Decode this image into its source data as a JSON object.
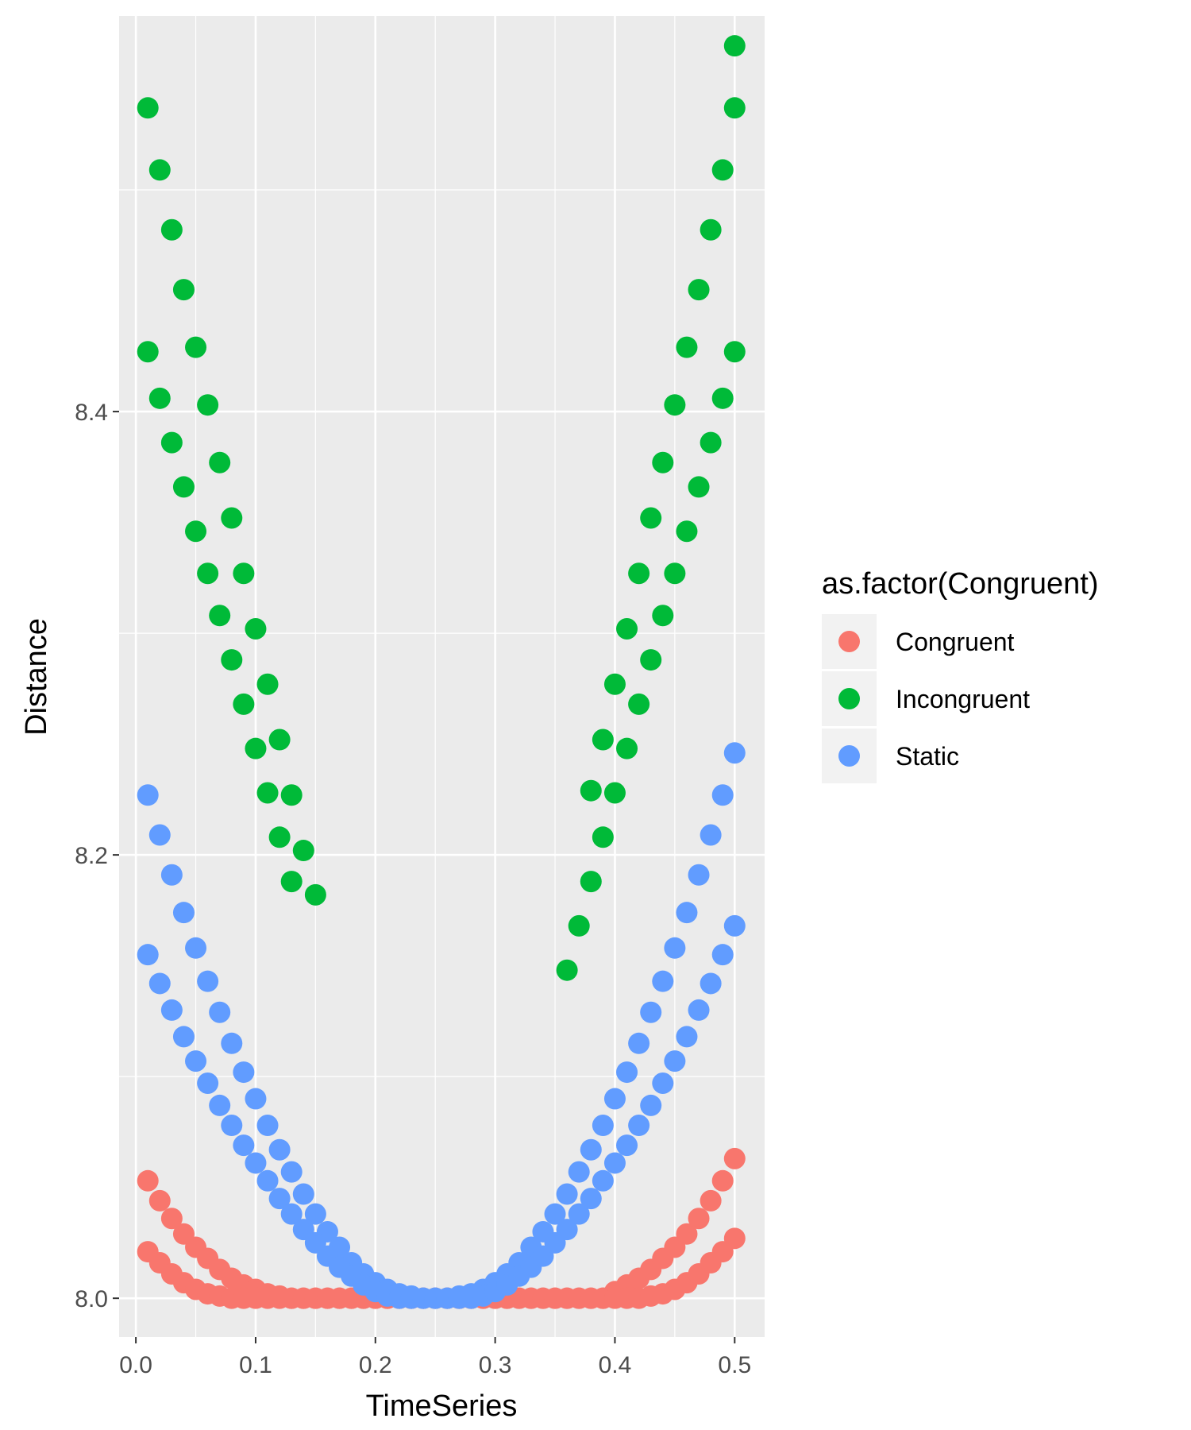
{
  "chart_data": {
    "type": "scatter",
    "xlabel": "TimeSeries",
    "ylabel": "Distance",
    "xlim": [
      -0.014,
      0.525
    ],
    "ylim": [
      7.9825,
      8.5785
    ],
    "x_ticks": [
      0.0,
      0.1,
      0.2,
      0.3,
      0.4,
      0.5
    ],
    "x_tick_labels": [
      "0.0",
      "0.1",
      "0.2",
      "0.3",
      "0.4",
      "0.5"
    ],
    "y_ticks": [
      8.0,
      8.2,
      8.4
    ],
    "y_tick_labels": [
      "8.0",
      "8.2",
      "8.4"
    ],
    "grid": true,
    "panel_background": "#ebebeb",
    "legend_title": "as.factor(Congruent)",
    "legend_position": "right",
    "series": [
      {
        "name": "Congruent",
        "color": "#F8766D",
        "points": [
          [
            0.01,
            8.053
          ],
          [
            0.02,
            8.044
          ],
          [
            0.03,
            8.036
          ],
          [
            0.04,
            8.029
          ],
          [
            0.05,
            8.023
          ],
          [
            0.06,
            8.018
          ],
          [
            0.07,
            8.013
          ],
          [
            0.08,
            8.009
          ],
          [
            0.09,
            8.006
          ],
          [
            0.1,
            8.004
          ],
          [
            0.11,
            8.002
          ],
          [
            0.12,
            8.001
          ],
          [
            0.13,
            8.0
          ],
          [
            0.14,
            8.0
          ],
          [
            0.15,
            8.0
          ],
          [
            0.16,
            8.0
          ],
          [
            0.17,
            8.0
          ],
          [
            0.18,
            8.0
          ],
          [
            0.19,
            8.0
          ],
          [
            0.2,
            8.0
          ],
          [
            0.21,
            8.0
          ],
          [
            0.22,
            8.0
          ],
          [
            0.23,
            8.0
          ],
          [
            0.24,
            8.0
          ],
          [
            0.25,
            8.0
          ],
          [
            0.26,
            8.0
          ],
          [
            0.27,
            8.0
          ],
          [
            0.28,
            8.0
          ],
          [
            0.29,
            8.0
          ],
          [
            0.3,
            8.0
          ],
          [
            0.31,
            8.0
          ],
          [
            0.32,
            8.0
          ],
          [
            0.33,
            8.0
          ],
          [
            0.34,
            8.0
          ],
          [
            0.35,
            8.0
          ],
          [
            0.36,
            8.0
          ],
          [
            0.37,
            8.0
          ],
          [
            0.38,
            8.0
          ],
          [
            0.39,
            8.0
          ],
          [
            0.4,
            8.003
          ],
          [
            0.41,
            8.006
          ],
          [
            0.42,
            8.009
          ],
          [
            0.43,
            8.013
          ],
          [
            0.44,
            8.018
          ],
          [
            0.45,
            8.023
          ],
          [
            0.46,
            8.029
          ],
          [
            0.47,
            8.036
          ],
          [
            0.48,
            8.044
          ],
          [
            0.49,
            8.053
          ],
          [
            0.5,
            8.063
          ],
          [
            0.01,
            8.021
          ],
          [
            0.02,
            8.016
          ],
          [
            0.03,
            8.011
          ],
          [
            0.04,
            8.007
          ],
          [
            0.05,
            8.004
          ],
          [
            0.06,
            8.002
          ],
          [
            0.07,
            8.001
          ],
          [
            0.08,
            8.0
          ],
          [
            0.09,
            8.0
          ],
          [
            0.1,
            8.0
          ],
          [
            0.11,
            8.0
          ],
          [
            0.12,
            8.0
          ],
          [
            0.13,
            8.0
          ],
          [
            0.14,
            8.0
          ],
          [
            0.15,
            8.0
          ],
          [
            0.16,
            8.0
          ],
          [
            0.17,
            8.0
          ],
          [
            0.18,
            8.0
          ],
          [
            0.19,
            8.0
          ],
          [
            0.2,
            8.0
          ],
          [
            0.21,
            8.0
          ],
          [
            0.22,
            8.0
          ],
          [
            0.23,
            8.0
          ],
          [
            0.24,
            8.0
          ],
          [
            0.25,
            8.0
          ],
          [
            0.26,
            8.0
          ],
          [
            0.27,
            8.0
          ],
          [
            0.28,
            8.0
          ],
          [
            0.29,
            8.0
          ],
          [
            0.3,
            8.0
          ],
          [
            0.31,
            8.0
          ],
          [
            0.32,
            8.0
          ],
          [
            0.33,
            8.0
          ],
          [
            0.34,
            8.0
          ],
          [
            0.35,
            8.0
          ],
          [
            0.36,
            8.0
          ],
          [
            0.37,
            8.0
          ],
          [
            0.38,
            8.0
          ],
          [
            0.39,
            8.0
          ],
          [
            0.4,
            8.0
          ],
          [
            0.41,
            8.0
          ],
          [
            0.42,
            8.0
          ],
          [
            0.43,
            8.001
          ],
          [
            0.44,
            8.002
          ],
          [
            0.45,
            8.004
          ],
          [
            0.46,
            8.007
          ],
          [
            0.47,
            8.011
          ],
          [
            0.48,
            8.016
          ],
          [
            0.49,
            8.021
          ],
          [
            0.5,
            8.027
          ]
        ]
      },
      {
        "name": "Incongruent",
        "color": "#00BA38",
        "points": [
          [
            0.01,
            8.537
          ],
          [
            0.02,
            8.509
          ],
          [
            0.03,
            8.482
          ],
          [
            0.04,
            8.455
          ],
          [
            0.05,
            8.429
          ],
          [
            0.06,
            8.403
          ],
          [
            0.07,
            8.377
          ],
          [
            0.08,
            8.352
          ],
          [
            0.09,
            8.327
          ],
          [
            0.1,
            8.302
          ],
          [
            0.11,
            8.277
          ],
          [
            0.12,
            8.252
          ],
          [
            0.13,
            8.227
          ],
          [
            0.14,
            8.202
          ],
          [
            0.15,
            8.182
          ],
          [
            0.01,
            8.427
          ],
          [
            0.02,
            8.406
          ],
          [
            0.03,
            8.386
          ],
          [
            0.04,
            8.366
          ],
          [
            0.05,
            8.346
          ],
          [
            0.06,
            8.327
          ],
          [
            0.07,
            8.308
          ],
          [
            0.08,
            8.288
          ],
          [
            0.09,
            8.268
          ],
          [
            0.1,
            8.248
          ],
          [
            0.11,
            8.228
          ],
          [
            0.12,
            8.208
          ],
          [
            0.13,
            8.188
          ],
          [
            0.36,
            8.148
          ],
          [
            0.37,
            8.168
          ],
          [
            0.38,
            8.188
          ],
          [
            0.39,
            8.208
          ],
          [
            0.4,
            8.228
          ],
          [
            0.41,
            8.248
          ],
          [
            0.42,
            8.268
          ],
          [
            0.43,
            8.288
          ],
          [
            0.44,
            8.308
          ],
          [
            0.45,
            8.327
          ],
          [
            0.46,
            8.346
          ],
          [
            0.47,
            8.366
          ],
          [
            0.48,
            8.386
          ],
          [
            0.49,
            8.406
          ],
          [
            0.5,
            8.427
          ],
          [
            0.38,
            8.229
          ],
          [
            0.39,
            8.252
          ],
          [
            0.4,
            8.277
          ],
          [
            0.41,
            8.302
          ],
          [
            0.42,
            8.327
          ],
          [
            0.43,
            8.352
          ],
          [
            0.44,
            8.377
          ],
          [
            0.45,
            8.403
          ],
          [
            0.46,
            8.429
          ],
          [
            0.47,
            8.455
          ],
          [
            0.48,
            8.482
          ],
          [
            0.49,
            8.509
          ],
          [
            0.5,
            8.537
          ],
          [
            0.5,
            8.565
          ]
        ]
      },
      {
        "name": "Static",
        "color": "#619CFF",
        "points": [
          [
            0.01,
            8.227
          ],
          [
            0.02,
            8.209
          ],
          [
            0.03,
            8.191
          ],
          [
            0.04,
            8.174
          ],
          [
            0.05,
            8.158
          ],
          [
            0.06,
            8.143
          ],
          [
            0.07,
            8.129
          ],
          [
            0.08,
            8.115
          ],
          [
            0.09,
            8.102
          ],
          [
            0.1,
            8.09
          ],
          [
            0.11,
            8.078
          ],
          [
            0.12,
            8.067
          ],
          [
            0.13,
            8.057
          ],
          [
            0.14,
            8.047
          ],
          [
            0.15,
            8.038
          ],
          [
            0.16,
            8.03
          ],
          [
            0.17,
            8.023
          ],
          [
            0.18,
            8.016
          ],
          [
            0.19,
            8.011
          ],
          [
            0.2,
            8.007
          ],
          [
            0.21,
            8.004
          ],
          [
            0.22,
            8.002
          ],
          [
            0.23,
            8.001
          ],
          [
            0.24,
            8.0
          ],
          [
            0.25,
            8.0
          ],
          [
            0.26,
            8.0
          ],
          [
            0.27,
            8.001
          ],
          [
            0.28,
            8.002
          ],
          [
            0.29,
            8.004
          ],
          [
            0.3,
            8.007
          ],
          [
            0.31,
            8.011
          ],
          [
            0.32,
            8.016
          ],
          [
            0.33,
            8.023
          ],
          [
            0.34,
            8.03
          ],
          [
            0.35,
            8.038
          ],
          [
            0.36,
            8.047
          ],
          [
            0.37,
            8.057
          ],
          [
            0.38,
            8.067
          ],
          [
            0.39,
            8.078
          ],
          [
            0.4,
            8.09
          ],
          [
            0.41,
            8.102
          ],
          [
            0.42,
            8.115
          ],
          [
            0.43,
            8.129
          ],
          [
            0.44,
            8.143
          ],
          [
            0.45,
            8.158
          ],
          [
            0.46,
            8.174
          ],
          [
            0.47,
            8.191
          ],
          [
            0.48,
            8.209
          ],
          [
            0.49,
            8.227
          ],
          [
            0.5,
            8.246
          ],
          [
            0.01,
            8.155
          ],
          [
            0.02,
            8.142
          ],
          [
            0.03,
            8.13
          ],
          [
            0.04,
            8.118
          ],
          [
            0.05,
            8.107
          ],
          [
            0.06,
            8.097
          ],
          [
            0.07,
            8.087
          ],
          [
            0.08,
            8.078
          ],
          [
            0.09,
            8.069
          ],
          [
            0.1,
            8.061
          ],
          [
            0.11,
            8.053
          ],
          [
            0.12,
            8.045
          ],
          [
            0.13,
            8.038
          ],
          [
            0.14,
            8.031
          ],
          [
            0.15,
            8.025
          ],
          [
            0.16,
            8.019
          ],
          [
            0.17,
            8.014
          ],
          [
            0.18,
            8.01
          ],
          [
            0.19,
            8.006
          ],
          [
            0.2,
            8.003
          ],
          [
            0.21,
            8.001
          ],
          [
            0.22,
            8.0
          ],
          [
            0.23,
            8.0
          ],
          [
            0.24,
            8.0
          ],
          [
            0.25,
            8.0
          ],
          [
            0.26,
            8.0
          ],
          [
            0.27,
            8.0
          ],
          [
            0.28,
            8.0
          ],
          [
            0.29,
            8.001
          ],
          [
            0.3,
            8.003
          ],
          [
            0.31,
            8.006
          ],
          [
            0.32,
            8.01
          ],
          [
            0.33,
            8.014
          ],
          [
            0.34,
            8.019
          ],
          [
            0.35,
            8.025
          ],
          [
            0.36,
            8.031
          ],
          [
            0.37,
            8.038
          ],
          [
            0.38,
            8.045
          ],
          [
            0.39,
            8.053
          ],
          [
            0.4,
            8.061
          ],
          [
            0.41,
            8.069
          ],
          [
            0.42,
            8.078
          ],
          [
            0.43,
            8.087
          ],
          [
            0.44,
            8.097
          ],
          [
            0.45,
            8.107
          ],
          [
            0.46,
            8.118
          ],
          [
            0.47,
            8.13
          ],
          [
            0.48,
            8.142
          ],
          [
            0.49,
            8.155
          ],
          [
            0.5,
            8.168
          ]
        ]
      }
    ]
  }
}
